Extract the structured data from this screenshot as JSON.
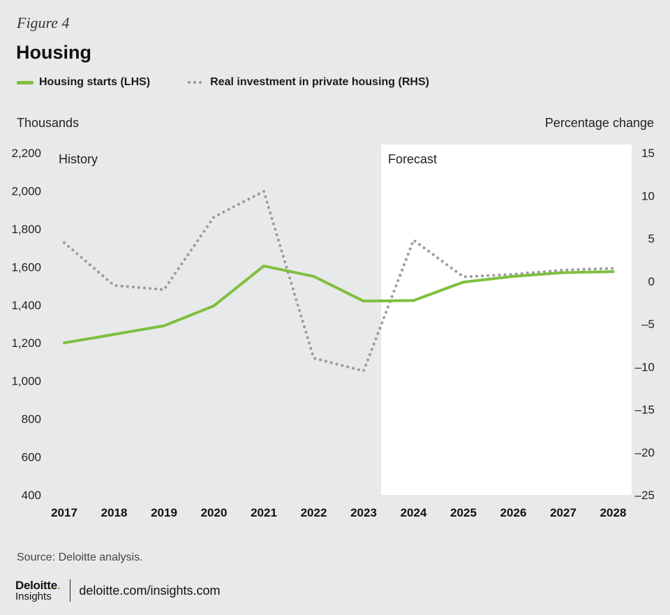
{
  "figure_label": "Figure 4",
  "title": "Housing",
  "legend": {
    "series1": "Housing starts (LHS)",
    "series2": "Real investment in private housing (RHS)"
  },
  "axis_titles": {
    "left": "Thousands",
    "right": "Percentage change"
  },
  "source": "Source: Deloitte analysis.",
  "footer": {
    "logo_main": "Deloitte",
    "logo_dot": ".",
    "logo_sub": "Insights",
    "url": "deloitte.com/insights.com"
  },
  "colors": {
    "background": "#e8e9eb",
    "forecast_panel": "#ffffff",
    "housing_starts": "#7fbf3f",
    "investment": "#9a9a9a"
  },
  "chart_data": {
    "type": "line",
    "x": [
      "2017",
      "2018",
      "2019",
      "2020",
      "2021",
      "2022",
      "2023",
      "2024",
      "2025",
      "2026",
      "2027",
      "2028"
    ],
    "y_left": {
      "range": [
        400,
        2200
      ],
      "ticks": [
        "2,200",
        "2,000",
        "1,800",
        "1,600",
        "1,400",
        "1,200",
        "1,000",
        "800",
        "600",
        "400"
      ],
      "tick_values": [
        2200,
        2000,
        1800,
        1600,
        1400,
        1200,
        1000,
        800,
        600,
        400
      ]
    },
    "y_right": {
      "range": [
        -25,
        15
      ],
      "ticks": [
        "15",
        "10",
        "5",
        "0",
        "–5",
        "–10",
        "–15",
        "–20",
        "–25"
      ],
      "tick_values": [
        15,
        10,
        5,
        0,
        -5,
        -10,
        -15,
        -20,
        -25
      ]
    },
    "regions": {
      "history_label": "History",
      "forecast_label": "Forecast",
      "forecast_start": 2023.35
    },
    "series": [
      {
        "name": "Housing starts (LHS)",
        "axis": "left",
        "style": "solid",
        "points": [
          [
            2017,
            1200
          ],
          [
            2018,
            1245
          ],
          [
            2019,
            1290
          ],
          [
            2020,
            1395
          ],
          [
            2021,
            1605
          ],
          [
            2022,
            1550
          ],
          [
            2023,
            1420
          ],
          [
            2024,
            1423
          ],
          [
            2025,
            1520
          ],
          [
            2026,
            1550
          ],
          [
            2027,
            1570
          ],
          [
            2028,
            1575
          ]
        ]
      },
      {
        "name": "Real investment in private housing (RHS)",
        "axis": "right",
        "style": "dotted",
        "points": [
          [
            2017,
            4.5
          ],
          [
            2018,
            -0.5
          ],
          [
            2019,
            -1.0
          ],
          [
            2020,
            7.5
          ],
          [
            2021,
            10.5
          ],
          [
            2022,
            -9.0
          ],
          [
            2023,
            -10.5
          ],
          [
            2024,
            4.8
          ],
          [
            2025,
            0.5
          ],
          [
            2026,
            0.8
          ],
          [
            2027,
            1.3
          ],
          [
            2028,
            1.5
          ]
        ]
      }
    ]
  }
}
